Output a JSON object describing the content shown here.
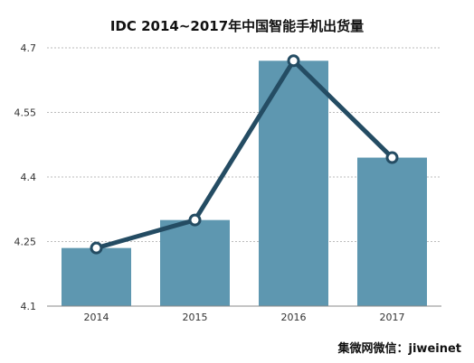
{
  "chart_data": {
    "type": "bar",
    "title": "IDC 2014~2017年中国智能手机出货量",
    "categories": [
      "2014",
      "2015",
      "2016",
      "2017"
    ],
    "series": [
      {
        "type": "bar",
        "values": [
          4.235,
          4.3,
          4.67,
          4.445
        ]
      },
      {
        "type": "line",
        "values": [
          4.235,
          4.3,
          4.67,
          4.445
        ]
      }
    ],
    "ylim": [
      4.1,
      4.7
    ],
    "yticks": [
      "4.1",
      "4.25",
      "4.4",
      "4.55",
      "4.7"
    ],
    "ytick_values": [
      4.1,
      4.25,
      4.4,
      4.55,
      4.7
    ],
    "grid": true,
    "xlabel": "",
    "ylabel": "",
    "colors": {
      "bar": "#5e97b0",
      "line": "#244c63",
      "marker_fill": "#ffffff",
      "grid": "#bbbbbb",
      "axis": "#888888"
    }
  },
  "watermark": "集微网微信：jiweinet"
}
